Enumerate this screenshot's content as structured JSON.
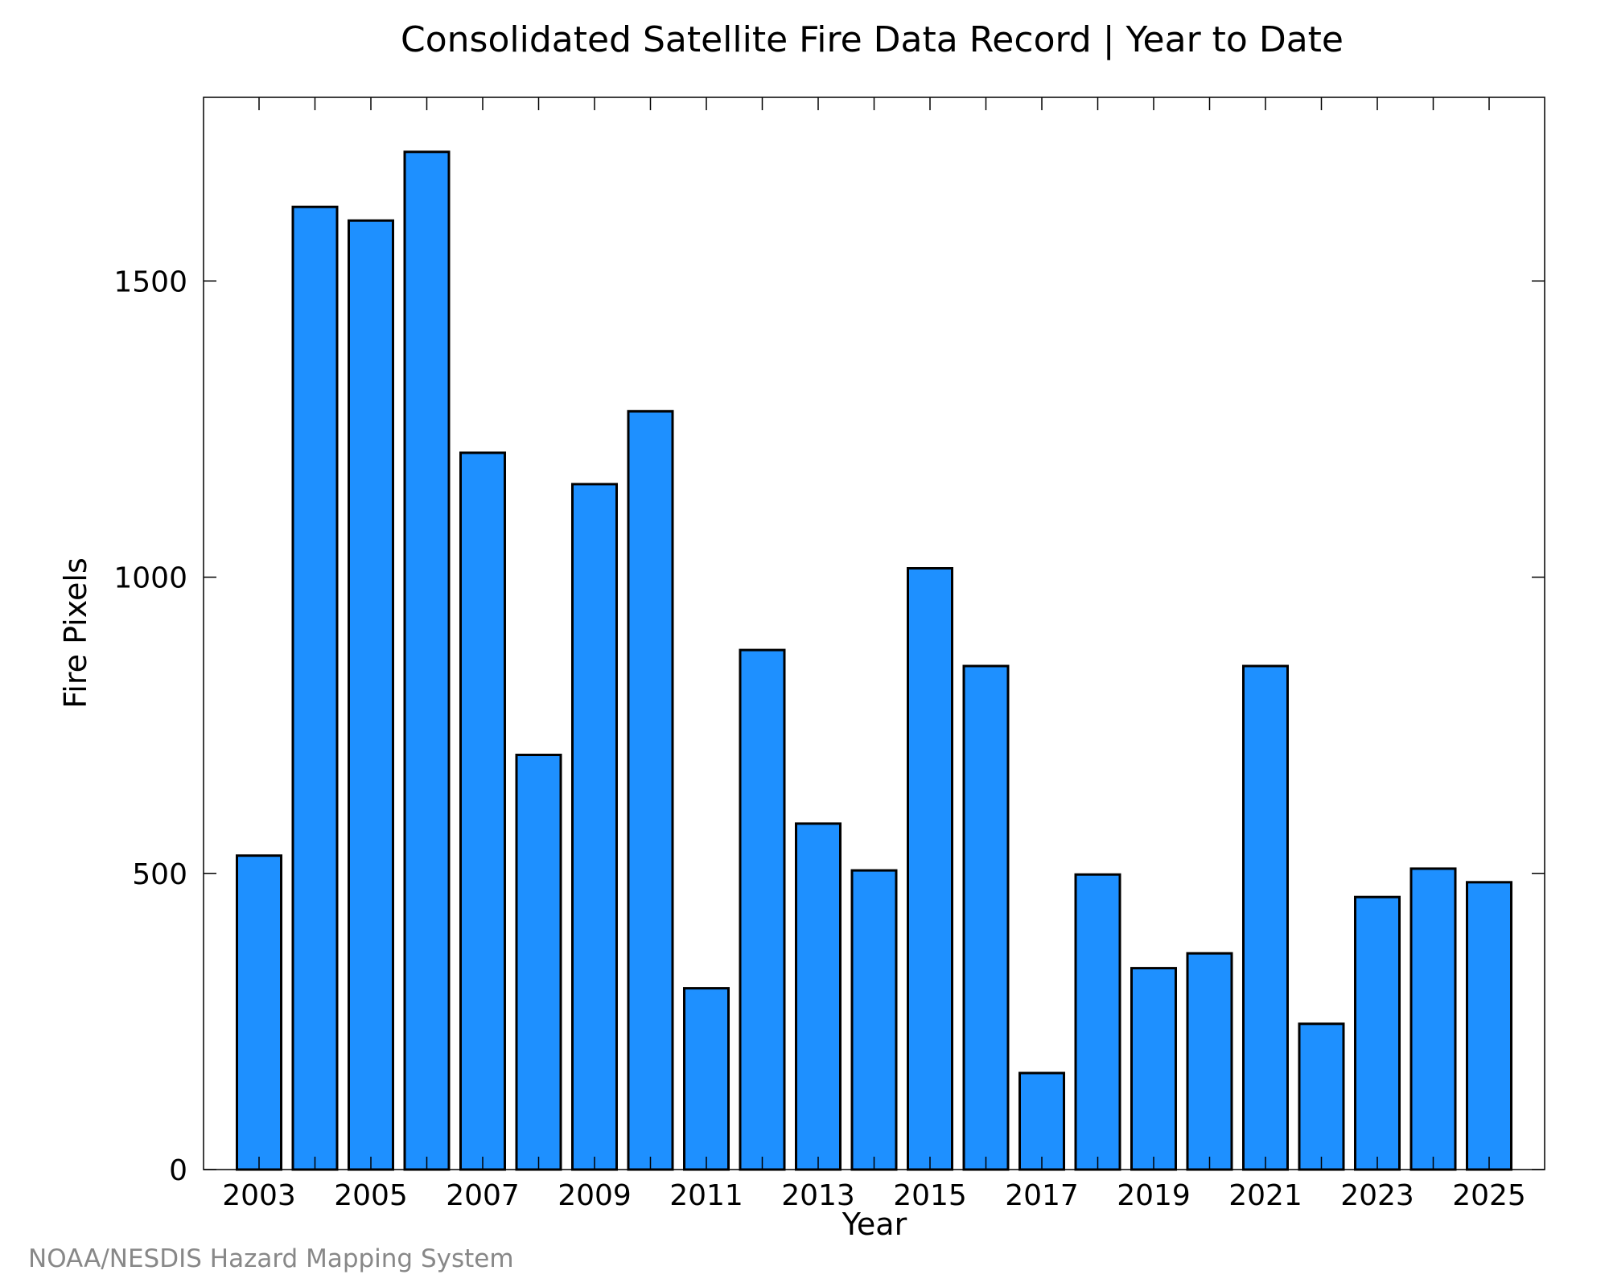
{
  "colors": {
    "bar_fill": "#1e90ff",
    "bar_stroke": "#000000",
    "footer_text": "#888888"
  },
  "footer": {
    "credit": "NOAA/NESDIS Hazard Mapping System"
  },
  "chart_data": {
    "type": "bar",
    "title": "Consolidated Satellite Fire Data Record | Year to Date",
    "xlabel": "Year",
    "ylabel": "Fire Pixels",
    "categories": [
      "2003",
      "2004",
      "2005",
      "2006",
      "2007",
      "2008",
      "2009",
      "2010",
      "2011",
      "2012",
      "2013",
      "2014",
      "2015",
      "2016",
      "2017",
      "2018",
      "2019",
      "2020",
      "2021",
      "2022",
      "2023",
      "2024",
      "2025"
    ],
    "values": [
      530,
      1625,
      1602,
      1718,
      1210,
      700,
      1157,
      1280,
      306,
      877,
      584,
      505,
      1015,
      850,
      163,
      498,
      340,
      365,
      850,
      246,
      460,
      508,
      485
    ],
    "ylim": [
      0,
      1810
    ],
    "yticks": [
      0,
      500,
      1000,
      1500
    ],
    "xtick_labels": [
      "2003",
      "2005",
      "2007",
      "2009",
      "2011",
      "2013",
      "2015",
      "2017",
      "2019",
      "2021",
      "2023",
      "2025"
    ],
    "grid": false,
    "legend": "none"
  }
}
